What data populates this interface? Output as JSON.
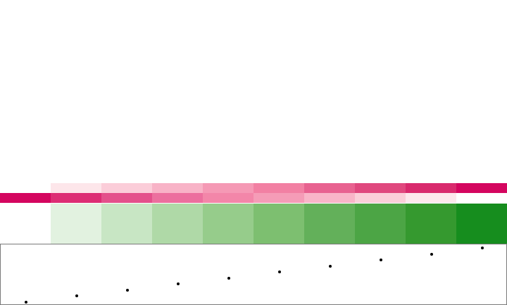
{
  "swatches": {
    "top_band_colors": [
      "#ffffff",
      "#fde6ea",
      "#fbcdd9",
      "#f8b3c7",
      "#f599b5",
      "#f280a3",
      "#e86290",
      "#e0487e",
      "#d92a6d",
      "#d4065f"
    ],
    "mid_band_colors": [
      "#d4065f",
      "#dd2d74",
      "#e4508b",
      "#ec6f9e",
      "#f386a9",
      "#f59cb7",
      "#f9b5c8",
      "#fbcfd9",
      "#fde8ec",
      "#ffffff"
    ],
    "green_band_colors": [
      "#ffffff",
      "#e2f2e0",
      "#c8e6c4",
      "#afd9a7",
      "#96cc8b",
      "#7dbf70",
      "#63b05a",
      "#4ca545",
      "#35992f",
      "#168d1e"
    ]
  },
  "dot_series": {
    "color": "#000000",
    "values": [
      1,
      2,
      3,
      4,
      5,
      6,
      7,
      8,
      9,
      10
    ]
  }
}
